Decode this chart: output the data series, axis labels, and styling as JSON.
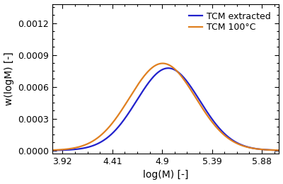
{
  "blue_label": "TCM extracted",
  "orange_label": "TCM 100°C",
  "xlabel": "log(M) [-]",
  "ylabel": "w(logM) [-]",
  "blue_color": "#2222cc",
  "orange_color": "#e08020",
  "blue_mu": 4.96,
  "blue_sigma": 0.31,
  "blue_amplitude": 0.000775,
  "orange_mu": 4.905,
  "orange_sigma": 0.325,
  "orange_amplitude": 0.00082,
  "xmin": 3.82,
  "xmax": 6.05,
  "ymin": -3e-05,
  "ymax": 0.00138,
  "xticks": [
    3.92,
    4.41,
    4.9,
    5.39,
    5.88
  ],
  "yticks": [
    0.0,
    0.0003,
    0.0006,
    0.0009,
    0.0012
  ],
  "legend_loc": "upper right",
  "linewidth": 1.6,
  "tick_direction": "in",
  "figsize": [
    4.0,
    2.6
  ],
  "dpi": 100
}
